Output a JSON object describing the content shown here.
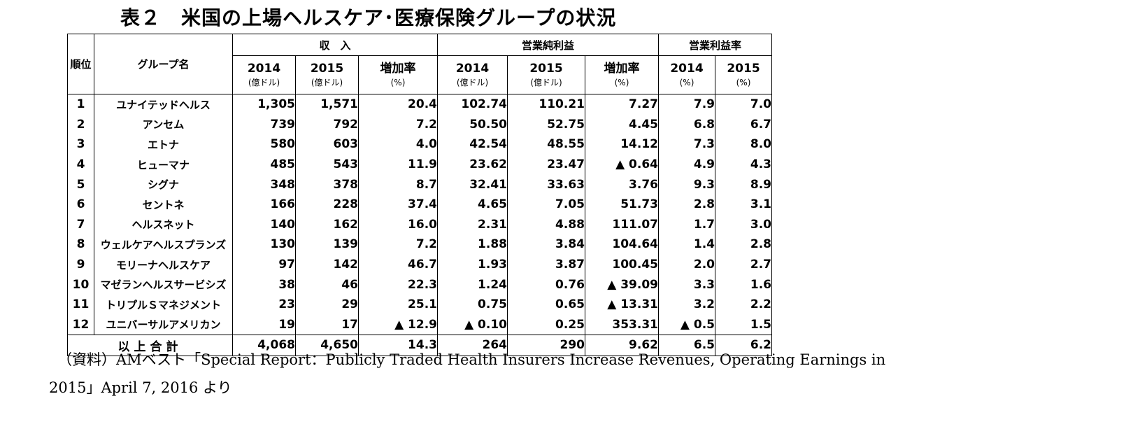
{
  "title": "表２　米国の上場ヘルスケア･医療保険グループの状況",
  "table": {
    "group_headers": {
      "rank": "順位",
      "name": "グループ名",
      "revenue": "収　入",
      "net_income": "営業純利益",
      "margin": "営業利益率"
    },
    "sub_headers": {
      "year_2014": "2014",
      "year_2015": "2015",
      "unit_oku_dollar": "(億ドル)",
      "growth": "増加率",
      "unit_pct": "(%)"
    },
    "rows": [
      {
        "rank": "1",
        "name": "ユナイテッドヘルス",
        "rev2014": "1,305",
        "rev2015": "1,571",
        "revGrowth": "20.4",
        "inc2014": "102.74",
        "inc2015": "110.21",
        "incGrowth": "7.27",
        "m2014": "7.9",
        "m2015": "7.0"
      },
      {
        "rank": "2",
        "name": "アンセム",
        "rev2014": "739",
        "rev2015": "792",
        "revGrowth": "7.2",
        "inc2014": "50.50",
        "inc2015": "52.75",
        "incGrowth": "4.45",
        "m2014": "6.8",
        "m2015": "6.7"
      },
      {
        "rank": "3",
        "name": "エトナ",
        "rev2014": "580",
        "rev2015": "603",
        "revGrowth": "4.0",
        "inc2014": "42.54",
        "inc2015": "48.55",
        "incGrowth": "14.12",
        "m2014": "7.3",
        "m2015": "8.0"
      },
      {
        "rank": "4",
        "name": "ヒューマナ",
        "rev2014": "485",
        "rev2015": "543",
        "revGrowth": "11.9",
        "inc2014": "23.62",
        "inc2015": "23.47",
        "incGrowth": "▲ 0.64",
        "m2014": "4.9",
        "m2015": "4.3"
      },
      {
        "rank": "5",
        "name": "シグナ",
        "rev2014": "348",
        "rev2015": "378",
        "revGrowth": "8.7",
        "inc2014": "32.41",
        "inc2015": "33.63",
        "incGrowth": "3.76",
        "m2014": "9.3",
        "m2015": "8.9"
      },
      {
        "rank": "6",
        "name": "セントネ",
        "rev2014": "166",
        "rev2015": "228",
        "revGrowth": "37.4",
        "inc2014": "4.65",
        "inc2015": "7.05",
        "incGrowth": "51.73",
        "m2014": "2.8",
        "m2015": "3.1"
      },
      {
        "rank": "7",
        "name": "ヘルスネット",
        "rev2014": "140",
        "rev2015": "162",
        "revGrowth": "16.0",
        "inc2014": "2.31",
        "inc2015": "4.88",
        "incGrowth": "111.07",
        "m2014": "1.7",
        "m2015": "3.0"
      },
      {
        "rank": "8",
        "name": "ウェルケアヘルスプランズ",
        "rev2014": "130",
        "rev2015": "139",
        "revGrowth": "7.2",
        "inc2014": "1.88",
        "inc2015": "3.84",
        "incGrowth": "104.64",
        "m2014": "1.4",
        "m2015": "2.8"
      },
      {
        "rank": "9",
        "name": "モリーナヘルスケア",
        "rev2014": "97",
        "rev2015": "142",
        "revGrowth": "46.7",
        "inc2014": "1.93",
        "inc2015": "3.87",
        "incGrowth": "100.45",
        "m2014": "2.0",
        "m2015": "2.7"
      },
      {
        "rank": "10",
        "name": "マゼランヘルスサービシズ",
        "rev2014": "38",
        "rev2015": "46",
        "revGrowth": "22.3",
        "inc2014": "1.24",
        "inc2015": "0.76",
        "incGrowth": "▲ 39.09",
        "m2014": "3.3",
        "m2015": "1.6"
      },
      {
        "rank": "11",
        "name": "トリプルＳマネジメント",
        "rev2014": "23",
        "rev2015": "29",
        "revGrowth": "25.1",
        "inc2014": "0.75",
        "inc2015": "0.65",
        "incGrowth": "▲ 13.31",
        "m2014": "3.2",
        "m2015": "2.2"
      },
      {
        "rank": "12",
        "name": "ユニバーサルアメリカン",
        "rev2014": "19",
        "rev2015": "17",
        "revGrowth": "▲ 12.9",
        "inc2014": "▲ 0.10",
        "inc2015": "0.25",
        "incGrowth": "353.31",
        "m2014": "▲ 0.5",
        "m2015": "1.5"
      }
    ],
    "total": {
      "label": "以上合計",
      "rev2014": "4,068",
      "rev2015": "4,650",
      "revGrowth": "14.3",
      "inc2014": "264",
      "inc2015": "290",
      "incGrowth": "9.62",
      "m2014": "6.5",
      "m2015": "6.2"
    }
  },
  "source_note": {
    "line1": "（資料）AMベスト「Special Report：Publicly Traded Health Insurers Increase Revenues, Operating Earnings in",
    "line2": "2015」April 7, 2016 より"
  }
}
